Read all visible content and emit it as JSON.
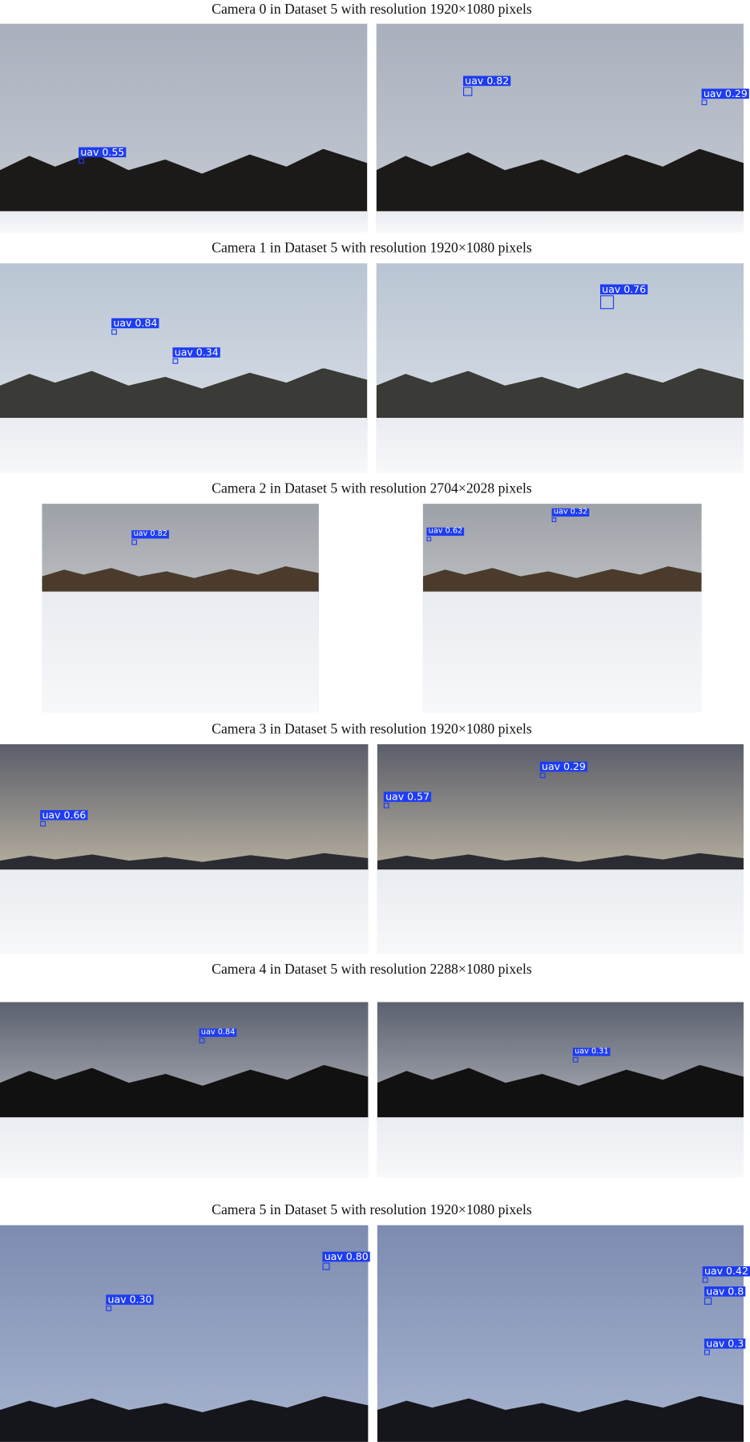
{
  "rows": [
    {
      "caption": "Camera 0 in Dataset 5 with resolution 1920×1080 pixels",
      "images": [
        {
          "detections": [
            {
              "label": "uav 0.55"
            }
          ]
        },
        {
          "detections": [
            {
              "label": "uav 0.82"
            },
            {
              "label": "uav 0.29"
            }
          ]
        }
      ]
    },
    {
      "caption": "Camera 1 in Dataset 5 with resolution 1920×1080 pixels",
      "images": [
        {
          "detections": [
            {
              "label": "uav 0.84"
            },
            {
              "label": "uav 0.34"
            }
          ]
        },
        {
          "detections": [
            {
              "label": "uav 0.76"
            }
          ]
        }
      ]
    },
    {
      "caption": "Camera 2 in Dataset 5 with resolution 2704×2028 pixels",
      "images": [
        {
          "detections": [
            {
              "label": "uav 0.82"
            }
          ]
        },
        {
          "detections": [
            {
              "label": "uav 0.32"
            },
            {
              "label": "uav 0.62"
            }
          ]
        }
      ]
    },
    {
      "caption": "Camera 3 in Dataset 5 with resolution 1920×1080 pixels",
      "images": [
        {
          "detections": [
            {
              "label": "uav 0.66"
            }
          ]
        },
        {
          "detections": [
            {
              "label": "uav 0.57"
            },
            {
              "label": "uav 0.29"
            }
          ]
        }
      ]
    },
    {
      "caption": "Camera 4 in Dataset 5 with resolution 2288×1080 pixels",
      "images": [
        {
          "detections": [
            {
              "label": "uav 0.84"
            }
          ]
        },
        {
          "detections": [
            {
              "label": "uav 0.31"
            }
          ]
        }
      ]
    },
    {
      "caption": "Camera 5 in Dataset 5 with resolution 1920×1080 pixels",
      "images": [
        {
          "detections": [
            {
              "label": "uav 0.80"
            },
            {
              "label": "uav 0.30"
            }
          ]
        },
        {
          "detections": [
            {
              "label": "uav 0.42"
            },
            {
              "label": "uav 0.8"
            },
            {
              "label": "uav 0.3"
            }
          ]
        }
      ]
    }
  ]
}
